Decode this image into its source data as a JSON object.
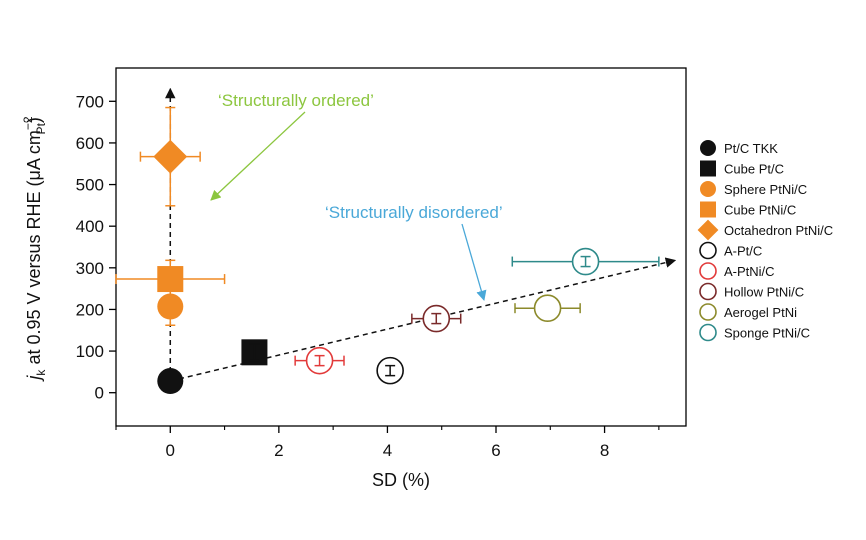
{
  "chart_data": {
    "type": "scatter",
    "title": "",
    "xlabel": "SD (%)",
    "ylabel": {
      "j": "j",
      "k": "k",
      "main": " at 0.95 V versus RHE (μA cm",
      "sup": "−2",
      "sub": "Pt",
      "close": ")"
    },
    "xlim": [
      -1,
      9.5
    ],
    "ylim": [
      -80,
      780
    ],
    "xticks": [
      0,
      2,
      4,
      6,
      8
    ],
    "xtick_labels": [
      "0",
      "2",
      "4",
      "6",
      "8"
    ],
    "yticks": [
      0,
      100,
      200,
      300,
      400,
      500,
      600,
      700
    ],
    "ytick_labels": [
      "0",
      "100",
      "200",
      "300",
      "400",
      "500",
      "600",
      "700"
    ],
    "legend_position": "right",
    "series": [
      {
        "name": "Pt/C TKK",
        "marker": "circle",
        "filled": true,
        "color": "#111111",
        "x": 0,
        "y": 28,
        "xerr": 0,
        "yerr": 0
      },
      {
        "name": "Cube Pt/C",
        "marker": "square",
        "filled": true,
        "color": "#111111",
        "x": 1.55,
        "y": 97,
        "xerr": 0.15,
        "yerr": 20
      },
      {
        "name": "Sphere PtNi/C",
        "marker": "circle",
        "filled": true,
        "color": "#f08a24",
        "x": 0,
        "y": 207,
        "xerr": 0,
        "yerr": 45
      },
      {
        "name": "Cube PtNi/C",
        "marker": "square",
        "filled": true,
        "color": "#f08a24",
        "x": 0,
        "y": 273,
        "xerr": 1.0,
        "yerr": 45
      },
      {
        "name": "Octahedron PtNi/C",
        "marker": "diamond",
        "filled": true,
        "color": "#f08a24",
        "x": 0,
        "y": 567,
        "xerr": 0.55,
        "yerr": 118
      },
      {
        "name": "A-Pt/C",
        "marker": "circle",
        "filled": false,
        "color": "#111111",
        "x": 4.05,
        "y": 53,
        "xerr": 0,
        "yerr": 12
      },
      {
        "name": "A-PtNi/C",
        "marker": "circle",
        "filled": false,
        "color": "#e23a3a",
        "x": 2.75,
        "y": 77,
        "xerr": 0.45,
        "yerr": 12
      },
      {
        "name": "Hollow PtNi/C",
        "marker": "circle",
        "filled": false,
        "color": "#7a2a2a",
        "x": 4.9,
        "y": 178,
        "xerr": 0.45,
        "yerr": 12
      },
      {
        "name": "Aerogel PtNi",
        "marker": "circle",
        "filled": false,
        "color": "#8c8a2b",
        "x": 6.95,
        "y": 203,
        "xerr": 0.6,
        "yerr": 0
      },
      {
        "name": "Sponge PtNi/C",
        "marker": "circle",
        "filled": false,
        "color": "#2e8a8a",
        "x": 7.65,
        "y": 315,
        "xerr": 1.35,
        "yerr": 12
      }
    ],
    "guides": [
      {
        "name": "ordered-trend",
        "from": [
          0,
          28
        ],
        "to": [
          0,
          730
        ],
        "style": "dashed-arrow"
      },
      {
        "name": "disordered-trend",
        "from": [
          0,
          28
        ],
        "to": [
          9.3,
          318
        ],
        "style": "dashed-arrow"
      }
    ],
    "annotations": [
      {
        "name": "annotation-structurally-ordered",
        "text": "‘Structurally ordered’",
        "color": "#8cc63f",
        "arrow_to": [
          0.35,
          450
        ]
      },
      {
        "name": "annotation-structurally-disordered",
        "text": "‘Structurally disordered’",
        "color": "#4aa8d8",
        "arrow_to": [
          5.65,
          215
        ]
      }
    ]
  }
}
